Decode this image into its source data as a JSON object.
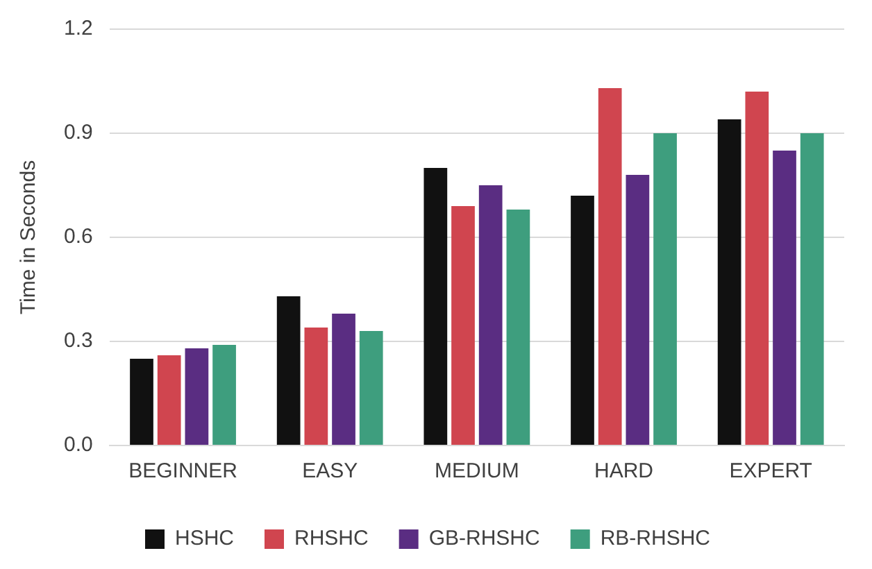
{
  "chart_data": {
    "type": "bar",
    "ylabel": "Time in Seconds",
    "categories": [
      "BEGINNER",
      "EASY",
      "MEDIUM",
      "HARD",
      "EXPERT"
    ],
    "series": [
      {
        "name": "HSHC",
        "color": "#111111",
        "values": [
          0.25,
          0.43,
          0.8,
          0.72,
          0.94
        ]
      },
      {
        "name": "RHSHC",
        "color": "#d0454f",
        "values": [
          0.26,
          0.34,
          0.69,
          1.03,
          1.02
        ]
      },
      {
        "name": "GB-RHSHC",
        "color": "#5a2d82",
        "values": [
          0.28,
          0.38,
          0.75,
          0.78,
          0.85
        ]
      },
      {
        "name": "RB-RHSHC",
        "color": "#3e9e7e",
        "values": [
          0.29,
          0.33,
          0.68,
          0.9,
          0.9
        ]
      }
    ],
    "ylim": [
      0,
      1.2
    ],
    "yticks": [
      {
        "value": 0,
        "label": "0.0"
      },
      {
        "value": 0.3,
        "label": "0.3"
      },
      {
        "value": 0.6,
        "label": "0.6"
      },
      {
        "value": 0.9,
        "label": "0.9"
      },
      {
        "value": 1.2,
        "label": "1.2"
      }
    ],
    "grid": "y",
    "legend": "bottom"
  }
}
